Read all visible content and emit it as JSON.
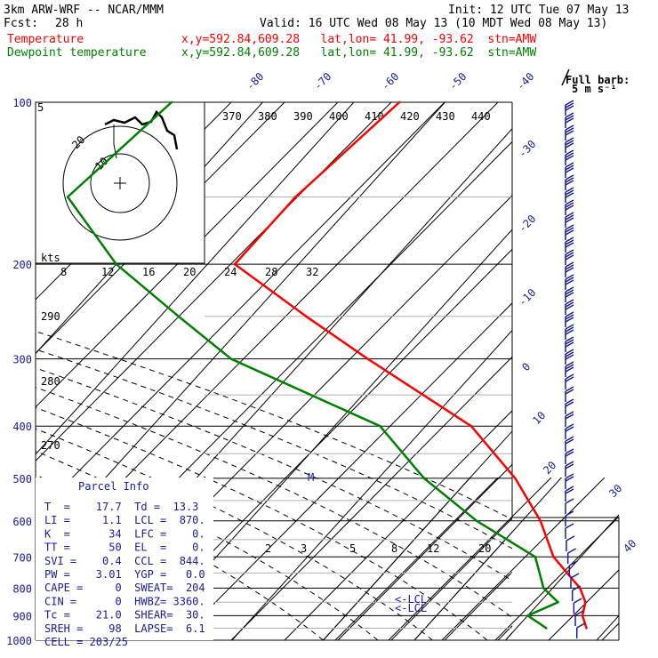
{
  "header": {
    "model": "3km ARW-WRF -- NCAR/MMM",
    "init": "Init: 12 UTC Tue 07 May 13",
    "fcst_label": "Fcst:",
    "fcst_value": "28 h",
    "valid": "Valid: 16 UTC Wed 08 May 13 (10 MDT Wed 08 May 13)",
    "temp_label": "Temperature",
    "temp_loc": "x,y=592.84,609.28   lat,lon= 41.99, -93.62  stn=AMW",
    "dew_label": "Dewpoint temperature",
    "dew_loc": "x,y=592.84,609.28   lat,lon= 41.99, -93.62  stn=AMW"
  },
  "colors": {
    "temperature": "#ff0000",
    "dewpoint": "#008000",
    "navy": "#1a1a9c",
    "grid": "#000000"
  },
  "chart_data": {
    "type": "line",
    "pressure_levels": [
      "100",
      "200",
      "300",
      "400",
      "500",
      "600",
      "700",
      "800",
      "900",
      "1000"
    ],
    "isotherm_labels": [
      "-80",
      "-70",
      "-60",
      "-50",
      "-40",
      "-30",
      "-20",
      "-10",
      "0",
      "10",
      "20",
      "30",
      "40"
    ],
    "theta_e_labels": [
      "370",
      "380",
      "390",
      "400",
      "410",
      "420",
      "430",
      "440"
    ],
    "mixing_ratio_labels": [
      "2",
      "3",
      "5",
      "8",
      "12",
      "20"
    ],
    "left_theta_labels": [
      "290",
      "280",
      "270"
    ],
    "wind_scale_label": "kts",
    "wind_scale_values": [
      "8",
      "12",
      "16",
      "20",
      "24",
      "28",
      "32"
    ],
    "hodograph_labels": [
      "20",
      "10"
    ],
    "barb_legend": {
      "title": "Full barb:",
      "value": "5 m s⁻¹"
    },
    "series": [
      {
        "name": "Temperature",
        "points": [
          [
            100,
            -55
          ],
          [
            150,
            -57
          ],
          [
            200,
            -57
          ],
          [
            250,
            -44
          ],
          [
            300,
            -33
          ],
          [
            400,
            -15
          ],
          [
            500,
            -5
          ],
          [
            600,
            2
          ],
          [
            700,
            7
          ],
          [
            800,
            13
          ],
          [
            850,
            15
          ],
          [
            900,
            16
          ],
          [
            950,
            17.7
          ]
        ]
      },
      {
        "name": "Dewpoint temperature",
        "points": [
          [
            100,
            -80
          ],
          [
            150,
            -82
          ],
          [
            200,
            -70
          ],
          [
            250,
            -58
          ],
          [
            300,
            -48
          ],
          [
            400,
            -25
          ],
          [
            500,
            -15
          ],
          [
            600,
            -5
          ],
          [
            700,
            5
          ],
          [
            800,
            9
          ],
          [
            850,
            12
          ],
          [
            900,
            10
          ],
          [
            950,
            13.3
          ]
        ]
      }
    ],
    "annotations": [
      {
        "text": "<-LCL"
      },
      {
        "text": "<-LCL"
      }
    ]
  },
  "parcel_info": {
    "title": "Parcel Info",
    "rows": [
      "T  =    17.7  Td =  13.3",
      "LI =     1.1  LCL =  870.",
      "K  =      34  LFC =    0.",
      "TT =      50  EL  =    0.",
      "SVI =    0.4  CCL =  844.",
      "PW =    3.01  YGP =   0.0",
      "CAPE =     0  SWEAT=  204",
      "CIN =      0  HWBZ= 3360.",
      "Tc =    21.0  SHEAR=  30.",
      "SREH =    98  LAPSE=  6.1",
      "CELL = 203/25"
    ]
  }
}
